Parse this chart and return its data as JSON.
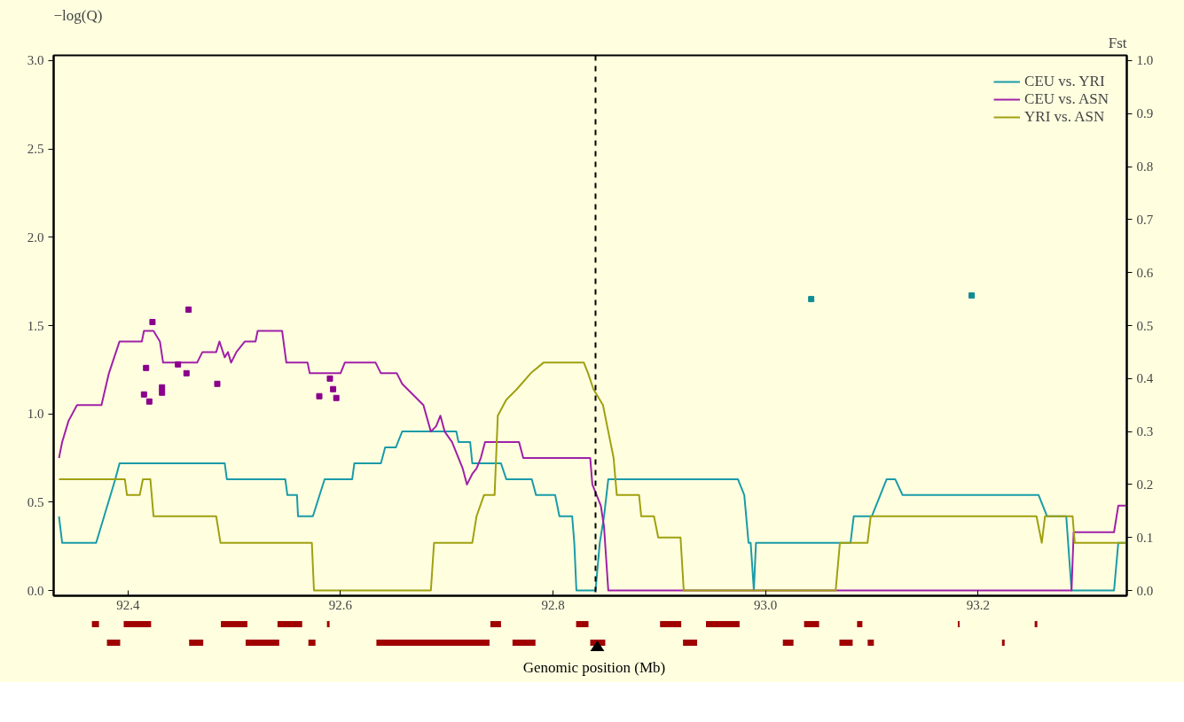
{
  "chart_data": {
    "type": "line",
    "ylabel": "−log(Q)",
    "y2label": "Fst",
    "xlabel": "Genomic position (Mb)",
    "xlim": [
      92.33,
      93.34
    ],
    "ylim": [
      -0.03,
      3.03
    ],
    "y2lim": [
      -0.01,
      1.01
    ],
    "xticks": [
      {
        "value": 92.4,
        "label": "92.4"
      },
      {
        "value": 92.6,
        "label": "92.6"
      },
      {
        "value": 92.8,
        "label": "92.8"
      },
      {
        "value": 93.0,
        "label": "93.0"
      },
      {
        "value": 93.2,
        "label": "93.2"
      }
    ],
    "yticks": [
      {
        "value": 0,
        "label": "0.0"
      },
      {
        "value": 0.5,
        "label": "0.5"
      },
      {
        "value": 1,
        "label": "1.0"
      },
      {
        "value": 1.5,
        "label": "1.5"
      },
      {
        "value": 2,
        "label": "2.0"
      },
      {
        "value": 2.5,
        "label": "2.5"
      },
      {
        "value": 3,
        "label": "3.0"
      }
    ],
    "y2ticks": [
      {
        "value": 0,
        "label": "0.0"
      },
      {
        "value": 0.1,
        "label": "0.1"
      },
      {
        "value": 0.2,
        "label": "0.2"
      },
      {
        "value": 0.3,
        "label": "0.3"
      },
      {
        "value": 0.4,
        "label": "0.4"
      },
      {
        "value": 0.5,
        "label": "0.5"
      },
      {
        "value": 0.6,
        "label": "0.6"
      },
      {
        "value": 0.7,
        "label": "0.7"
      },
      {
        "value": 0.8,
        "label": "0.8"
      },
      {
        "value": 0.9,
        "label": "0.9"
      },
      {
        "value": 1,
        "label": "1.0"
      }
    ],
    "grid": false,
    "legend": "top right",
    "marker": "none",
    "line_style": "solid",
    "ref_lines": [
      {
        "axis": "x",
        "value": 92.84,
        "line_style": "dashed",
        "color": "#000000"
      }
    ],
    "series": [
      {
        "name": "CEU vs. YRI",
        "color": "#1a9ba8",
        "axis": "y2",
        "x": [
          92.335,
          92.338,
          92.37,
          92.388,
          92.392,
          92.491,
          92.493,
          92.548,
          92.55,
          92.559,
          92.56,
          92.574,
          92.585,
          92.611,
          92.613,
          92.638,
          92.642,
          92.652,
          92.658,
          92.709,
          92.711,
          92.722,
          92.724,
          92.751,
          92.756,
          92.78,
          92.784,
          92.802,
          92.806,
          92.818,
          92.82,
          92.822,
          92.84,
          92.844,
          92.848,
          92.852,
          92.974,
          92.98,
          92.984,
          92.986,
          92.989,
          92.991,
          93.08,
          93.083,
          93.1,
          93.114,
          93.122,
          93.129,
          93.257,
          93.265,
          93.283,
          93.288,
          93.328,
          93.332,
          93.339
        ],
        "values": [
          0.14,
          0.09,
          0.09,
          0.21,
          0.24,
          0.24,
          0.21,
          0.21,
          0.18,
          0.18,
          0.14,
          0.14,
          0.21,
          0.21,
          0.24,
          0.24,
          0.27,
          0.27,
          0.3,
          0.3,
          0.28,
          0.28,
          0.24,
          0.24,
          0.21,
          0.21,
          0.18,
          0.18,
          0.14,
          0.14,
          0.09,
          0,
          0,
          0.09,
          0.14,
          0.21,
          0.21,
          0.18,
          0.09,
          0.09,
          0,
          0.09,
          0.09,
          0.14,
          0.14,
          0.21,
          0.21,
          0.18,
          0.18,
          0.14,
          0.14,
          0,
          0,
          0.09,
          0.09
        ]
      },
      {
        "name": "CEU vs. ASN",
        "color": "#a020a8",
        "axis": "y2",
        "x": [
          92.335,
          92.338,
          92.344,
          92.352,
          92.375,
          92.382,
          92.392,
          92.413,
          92.415,
          92.424,
          92.43,
          92.433,
          92.465,
          92.47,
          92.483,
          92.486,
          92.491,
          92.494,
          92.497,
          92.502,
          92.51,
          92.52,
          92.522,
          92.545,
          92.549,
          92.569,
          92.571,
          92.6,
          92.604,
          92.633,
          92.638,
          92.653,
          92.658,
          92.668,
          92.678,
          92.685,
          92.69,
          92.694,
          92.698,
          92.705,
          92.715,
          92.719,
          92.724,
          92.728,
          92.732,
          92.736,
          92.768,
          92.772,
          92.835,
          92.837,
          92.845,
          92.848,
          92.852,
          93.288,
          93.29,
          93.328,
          93.332,
          93.339
        ],
        "values": [
          0.25,
          0.28,
          0.32,
          0.35,
          0.35,
          0.41,
          0.47,
          0.47,
          0.49,
          0.49,
          0.47,
          0.43,
          0.43,
          0.45,
          0.45,
          0.47,
          0.44,
          0.45,
          0.43,
          0.45,
          0.47,
          0.47,
          0.49,
          0.49,
          0.43,
          0.43,
          0.41,
          0.41,
          0.43,
          0.43,
          0.41,
          0.41,
          0.39,
          0.37,
          0.35,
          0.3,
          0.31,
          0.33,
          0.3,
          0.28,
          0.23,
          0.2,
          0.22,
          0.23,
          0.25,
          0.28,
          0.28,
          0.25,
          0.25,
          0.2,
          0.16,
          0.12,
          0,
          0,
          0.11,
          0.11,
          0.16,
          0.16
        ]
      },
      {
        "name": "YRI vs. ASN",
        "color": "#a0a010",
        "axis": "y2",
        "x": [
          92.335,
          92.397,
          92.399,
          92.411,
          92.414,
          92.421,
          92.424,
          92.483,
          92.487,
          92.573,
          92.575,
          92.685,
          92.688,
          92.724,
          92.728,
          92.735,
          92.745,
          92.748,
          92.756,
          92.766,
          92.779,
          92.791,
          92.829,
          92.833,
          92.838,
          92.847,
          92.852,
          92.857,
          92.86,
          92.881,
          92.883,
          92.895,
          92.899,
          92.92,
          92.923,
          93.066,
          93.07,
          93.096,
          93.099,
          93.255,
          93.26,
          93.263,
          93.289,
          93.291,
          93.339
        ],
        "values": [
          0.21,
          0.21,
          0.18,
          0.18,
          0.21,
          0.21,
          0.14,
          0.14,
          0.09,
          0.09,
          0,
          0,
          0.09,
          0.09,
          0.14,
          0.18,
          0.18,
          0.33,
          0.36,
          0.38,
          0.41,
          0.43,
          0.43,
          0.41,
          0.38,
          0.35,
          0.3,
          0.25,
          0.18,
          0.18,
          0.14,
          0.14,
          0.1,
          0.1,
          0,
          0,
          0.09,
          0.09,
          0.14,
          0.14,
          0.09,
          0.14,
          0.14,
          0.09,
          0.09
        ]
      },
      {
        "type": "scatter",
        "marker": "square",
        "color": "#8b008b",
        "x": [
          92.423,
          92.457,
          92.417,
          92.415,
          92.42,
          92.432,
          92.432,
          92.447,
          92.455,
          92.484,
          92.59,
          92.593,
          92.58,
          92.596
        ],
        "values": [
          1.52,
          1.59,
          1.26,
          1.11,
          1.07,
          1.15,
          1.12,
          1.28,
          1.23,
          1.17,
          1.2,
          1.14,
          1.1,
          1.09
        ]
      },
      {
        "type": "scatter",
        "marker": "square",
        "color": "#108c94",
        "x": [
          93.043,
          93.194
        ],
        "values": [
          1.65,
          1.67
        ]
      }
    ]
  }
}
